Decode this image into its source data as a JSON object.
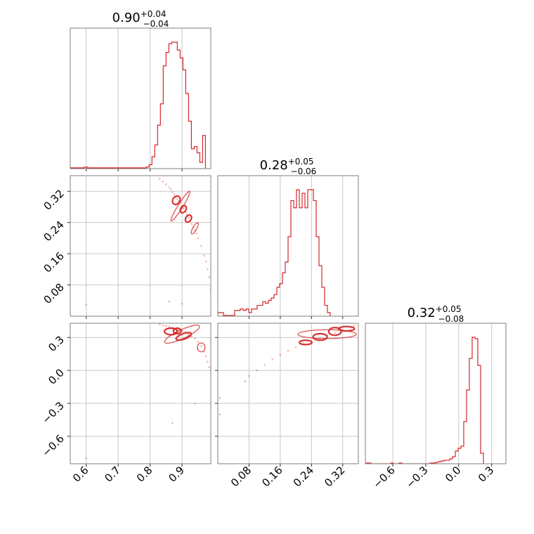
{
  "chart_data": {
    "type": "corner",
    "color": "#d62728",
    "parameters": [
      {
        "range": [
          0.55,
          0.99
        ],
        "ticks": [
          0.6,
          0.7,
          0.8,
          0.9
        ],
        "tick_labels": [
          "0.6",
          "0.7",
          "0.8",
          "0.9"
        ],
        "title_value": "0.90",
        "title_plus": "+0.04",
        "title_minus": "−0.04",
        "hist": {
          "edges_start": 0.55,
          "bin_width": 0.00882,
          "counts": [
            1,
            1,
            1,
            1,
            1,
            2,
            1,
            1,
            1,
            1,
            1,
            1,
            1,
            1,
            1,
            1,
            1,
            1,
            1,
            1,
            1,
            1,
            1,
            1,
            1,
            1,
            1,
            2,
            5,
            15,
            30,
            55,
            82,
            130,
            147,
            158,
            160,
            160,
            150,
            140,
            125,
            95,
            60,
            25,
            28,
            20,
            8,
            42
          ]
        }
      },
      {
        "range": [
          0.0,
          0.36
        ],
        "ticks": [
          0.08,
          0.16,
          0.24,
          0.32
        ],
        "tick_labels": [
          "0.08",
          "0.16",
          "0.24",
          "0.32"
        ],
        "title_value": "0.28",
        "title_plus": "+0.05",
        "title_minus": "−0.06",
        "hist": {
          "edges_start": 0.0,
          "bin_width": 0.0072,
          "counts": [
            5,
            5,
            1,
            1,
            1,
            1,
            8,
            8,
            10,
            8,
            10,
            5,
            10,
            10,
            15,
            15,
            20,
            18,
            22,
            25,
            30,
            40,
            45,
            60,
            75,
            110,
            160,
            150,
            175,
            150,
            170,
            150,
            175,
            175,
            160,
            110,
            70,
            40,
            15,
            5
          ]
        }
      },
      {
        "range": [
          -0.85,
          0.43
        ],
        "ticks": [
          -0.6,
          -0.3,
          0.0,
          0.3
        ],
        "tick_labels": [
          "−0.6",
          "−0.3",
          "0.0",
          "0.3"
        ],
        "title_value": "0.32",
        "title_plus": "+0.05",
        "title_minus": "−0.08",
        "hist": {
          "edges_start": -0.85,
          "bin_width": 0.0256,
          "counts": [
            1,
            1,
            0,
            0,
            0,
            0,
            0,
            0,
            0,
            1,
            0,
            0,
            1,
            0,
            0,
            0,
            0,
            0,
            0,
            0,
            0,
            0,
            0,
            1,
            1,
            2,
            3,
            4,
            5,
            5,
            7,
            10,
            18,
            22,
            25,
            60,
            105,
            150,
            180,
            178,
            140,
            15
          ]
        }
      }
    ],
    "pairs": [
      {
        "x_param": 0,
        "y_param": 1,
        "samples": [
          [
            0.83,
            0.352
          ],
          [
            0.84,
            0.345
          ],
          [
            0.85,
            0.338
          ],
          [
            0.86,
            0.33
          ],
          [
            0.865,
            0.325
          ],
          [
            0.87,
            0.318
          ],
          [
            0.875,
            0.312
          ],
          [
            0.88,
            0.305
          ],
          [
            0.885,
            0.3
          ],
          [
            0.89,
            0.295
          ],
          [
            0.895,
            0.29
          ],
          [
            0.9,
            0.283
          ],
          [
            0.905,
            0.276
          ],
          [
            0.91,
            0.268
          ],
          [
            0.915,
            0.26
          ],
          [
            0.92,
            0.252
          ],
          [
            0.925,
            0.244
          ],
          [
            0.93,
            0.236
          ],
          [
            0.935,
            0.228
          ],
          [
            0.94,
            0.22
          ],
          [
            0.945,
            0.212
          ],
          [
            0.95,
            0.2
          ],
          [
            0.96,
            0.18
          ],
          [
            0.97,
            0.155
          ],
          [
            0.975,
            0.14
          ],
          [
            0.98,
            0.12
          ],
          [
            0.985,
            0.1
          ],
          [
            0.99,
            0.07
          ],
          [
            0.6,
            0.03
          ],
          [
            0.86,
            0.038
          ],
          [
            0.9,
            0.032
          ]
        ],
        "contours": [
          {
            "cx": 0.882,
            "cy": 0.297,
            "rx": 0.014,
            "ry": 0.009,
            "angle": -58,
            "level": 1
          },
          {
            "cx": 0.904,
            "cy": 0.274,
            "rx": 0.012,
            "ry": 0.007,
            "angle": -58,
            "level": 1
          },
          {
            "cx": 0.92,
            "cy": 0.25,
            "rx": 0.012,
            "ry": 0.007,
            "angle": -58,
            "level": 1
          },
          {
            "cx": 0.895,
            "cy": 0.282,
            "rx": 0.055,
            "ry": 0.006,
            "angle": -58,
            "level": 2
          },
          {
            "cx": 0.94,
            "cy": 0.225,
            "rx": 0.02,
            "ry": 0.005,
            "angle": -60,
            "level": 2
          }
        ]
      },
      {
        "x_param": 0,
        "y_param": 2,
        "samples": [
          [
            0.83,
            0.42
          ],
          [
            0.84,
            0.41
          ],
          [
            0.85,
            0.405
          ],
          [
            0.86,
            0.4
          ],
          [
            0.87,
            0.39
          ],
          [
            0.88,
            0.38
          ],
          [
            0.89,
            0.37
          ],
          [
            0.9,
            0.36
          ],
          [
            0.91,
            0.35
          ],
          [
            0.92,
            0.33
          ],
          [
            0.93,
            0.31
          ],
          [
            0.94,
            0.29
          ],
          [
            0.95,
            0.26
          ],
          [
            0.96,
            0.22
          ],
          [
            0.97,
            0.17
          ],
          [
            0.975,
            0.13
          ],
          [
            0.98,
            0.08
          ],
          [
            0.985,
            0.03
          ],
          [
            0.99,
            0.0
          ],
          [
            0.94,
            -0.3
          ],
          [
            0.87,
            -0.48
          ],
          [
            0.6,
            -0.8
          ]
        ],
        "contours": [
          {
            "cx": 0.865,
            "cy": 0.355,
            "rx": 0.02,
            "ry": 0.03,
            "angle": 0,
            "level": 1
          },
          {
            "cx": 0.885,
            "cy": 0.36,
            "rx": 0.012,
            "ry": 0.025,
            "angle": 0,
            "level": 1
          },
          {
            "cx": 0.905,
            "cy": 0.31,
            "rx": 0.025,
            "ry": 0.025,
            "angle": -20,
            "level": 1
          },
          {
            "cx": 0.9,
            "cy": 0.33,
            "rx": 0.06,
            "ry": 0.04,
            "angle": -25,
            "level": 2
          },
          {
            "cx": 0.96,
            "cy": 0.21,
            "rx": 0.012,
            "ry": 0.04,
            "angle": 0,
            "level": 2
          }
        ]
      },
      {
        "x_param": 1,
        "y_param": 2,
        "samples": [
          [
            0.07,
            -0.1
          ],
          [
            0.08,
            -0.05
          ],
          [
            0.1,
            0.0
          ],
          [
            0.12,
            0.05
          ],
          [
            0.14,
            0.1
          ],
          [
            0.16,
            0.14
          ],
          [
            0.18,
            0.18
          ],
          [
            0.2,
            0.21
          ],
          [
            0.22,
            0.24
          ],
          [
            0.24,
            0.26
          ],
          [
            0.26,
            0.29
          ],
          [
            0.28,
            0.32
          ],
          [
            0.3,
            0.34
          ],
          [
            0.32,
            0.36
          ],
          [
            0.34,
            0.39
          ],
          [
            0.35,
            0.41
          ],
          [
            0.005,
            -0.4
          ],
          [
            0.005,
            -0.25
          ]
        ],
        "contours": [
          {
            "cx": 0.225,
            "cy": 0.255,
            "rx": 0.016,
            "ry": 0.02,
            "angle": 0,
            "level": 1
          },
          {
            "cx": 0.262,
            "cy": 0.305,
            "rx": 0.018,
            "ry": 0.03,
            "angle": 0,
            "level": 1
          },
          {
            "cx": 0.3,
            "cy": 0.355,
            "rx": 0.016,
            "ry": 0.035,
            "angle": 0,
            "level": 1
          },
          {
            "cx": 0.33,
            "cy": 0.38,
            "rx": 0.02,
            "ry": 0.02,
            "angle": 0,
            "level": 1
          },
          {
            "cx": 0.28,
            "cy": 0.33,
            "rx": 0.075,
            "ry": 0.04,
            "angle": 0,
            "level": 2
          }
        ]
      }
    ]
  }
}
